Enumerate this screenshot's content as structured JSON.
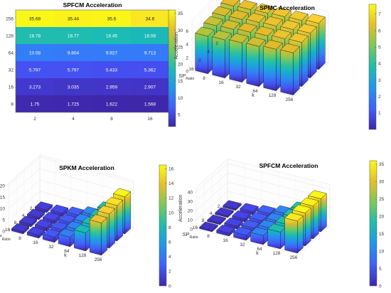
{
  "colormap": [
    "#3e26a8",
    "#4746eb",
    "#3f67fc",
    "#2f85f5",
    "#1e9fe1",
    "#13b5c4",
    "#2ac39a",
    "#63c96a",
    "#a8c63e",
    "#e1ba2a",
    "#fbcf34",
    "#f9fb15"
  ],
  "chart_data": [
    {
      "type": "heatmap",
      "title": "SPFCM Acceleration",
      "x_ticks": [
        "2",
        "4",
        "8",
        "16"
      ],
      "y_ticks": [
        "256",
        "128",
        "64",
        "32",
        "16",
        "8"
      ],
      "cells": [
        [
          "35.68",
          "35.44",
          "35.6",
          "34.6"
        ],
        [
          "18.78",
          "18.77",
          "18.45",
          "18.08"
        ],
        [
          "10.08",
          "9.804",
          "9.927",
          "9.713"
        ],
        [
          "5.797",
          "5.797",
          "5.433",
          "5.362"
        ],
        [
          "3.273",
          "3.035",
          "2.959",
          "2.907"
        ],
        [
          "1.75",
          "1.725",
          "1.622",
          "1.568"
        ]
      ],
      "colorbar": {
        "min": 1.5,
        "max": 36,
        "ticks": [
          "5",
          "10",
          "15",
          "20",
          "25",
          "30",
          "35"
        ]
      }
    },
    {
      "type": "bar3d",
      "title": "SPMC Acceleration",
      "ylabel": "Acceleration",
      "xlabel_main": "SP",
      "xlabel_sub": "Ratio",
      "klabel": "k",
      "sp_ticks": [
        "2",
        "4",
        "8",
        "16"
      ],
      "k_ticks": [
        "8",
        "16",
        "32",
        "64",
        "128",
        "256"
      ],
      "z_ticks": [
        "0",
        "2",
        "4",
        "6"
      ],
      "zmax": 7.6,
      "heights": [
        [
          6.3,
          6.4,
          6.5,
          6.6,
          6.7,
          6.9
        ],
        [
          6.1,
          6.2,
          6.4,
          6.5,
          6.6,
          6.7
        ],
        [
          5.9,
          6.0,
          6.2,
          6.3,
          6.5,
          6.6
        ],
        [
          5.6,
          5.7,
          5.9,
          6.0,
          6.2,
          6.3
        ]
      ],
      "colorbar": {
        "min": 0,
        "max": 7.6,
        "ticks": [
          "1",
          "2",
          "3",
          "4",
          "5",
          "6",
          "7"
        ]
      }
    },
    {
      "type": "bar3d",
      "title": "SPKM Acceleration",
      "ylabel": "Acceleration",
      "xlabel_main": "SP",
      "xlabel_sub": "Ratio",
      "klabel": "k",
      "sp_ticks": [
        "2",
        "4",
        "8",
        "16"
      ],
      "k_ticks": [
        "8",
        "16",
        "32",
        "64",
        "128",
        "256"
      ],
      "z_ticks": [
        "0",
        "5",
        "10",
        "15",
        "20"
      ],
      "zmax": 21,
      "heights": [
        [
          1.1,
          1.6,
          2.6,
          4.6,
          8.6,
          16.3
        ],
        [
          1.0,
          1.5,
          2.5,
          4.5,
          8.4,
          15.6
        ],
        [
          1.0,
          1.4,
          2.4,
          4.4,
          8.2,
          15.0
        ],
        [
          0.9,
          1.3,
          2.3,
          4.2,
          7.9,
          14.2
        ]
      ],
      "colorbar": {
        "min": 0,
        "max": 16.5,
        "ticks": [
          "0",
          "2",
          "4",
          "6",
          "8",
          "10",
          "12",
          "14",
          "16"
        ]
      }
    },
    {
      "type": "bar3d",
      "title": "SPFCM Acceleration",
      "ylabel": "Acceleration",
      "xlabel_main": "SP",
      "xlabel_sub": "Ratio",
      "klabel": "k",
      "sp_ticks": [
        "2",
        "4",
        "8",
        "16"
      ],
      "k_ticks": [
        "8",
        "16",
        "32",
        "64",
        "128",
        "256"
      ],
      "z_ticks": [
        "0",
        "10",
        "20",
        "30",
        "40"
      ],
      "zmax": 45,
      "heights": [
        [
          1.75,
          3.273,
          5.797,
          10.08,
          18.78,
          35.68
        ],
        [
          1.725,
          3.035,
          5.797,
          9.804,
          18.77,
          35.44
        ],
        [
          1.622,
          2.959,
          5.433,
          9.927,
          18.45,
          35.6
        ],
        [
          1.568,
          2.907,
          5.362,
          9.713,
          18.08,
          34.6
        ]
      ],
      "colorbar": {
        "min": 0,
        "max": 36,
        "ticks": [
          "0",
          "5",
          "10",
          "15",
          "20",
          "25",
          "30",
          "35"
        ]
      }
    }
  ]
}
